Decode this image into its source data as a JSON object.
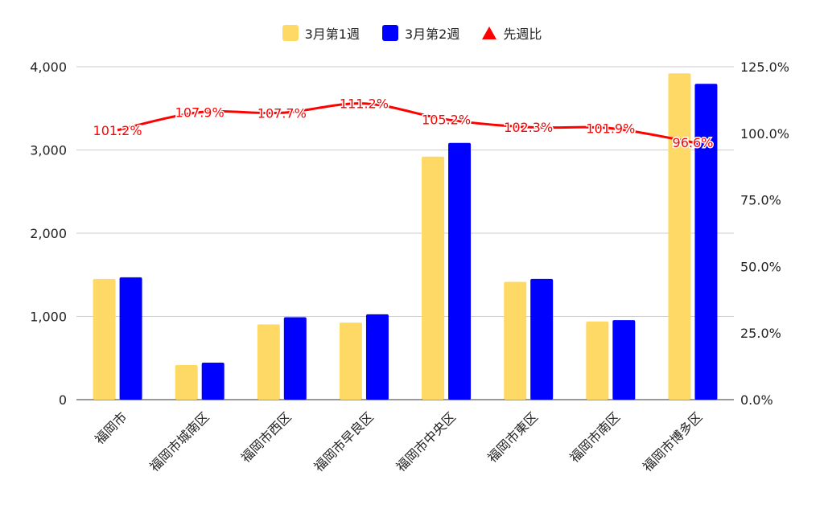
{
  "chart_data": {
    "type": "bar",
    "categories": [
      "福岡市",
      "福岡市城南区",
      "福岡市西区",
      "福岡市早良区",
      "福岡市中央区",
      "福岡市東区",
      "福岡市南区",
      "福岡市博多区"
    ],
    "series": [
      {
        "name": "3月第1週",
        "values": [
          1450,
          415,
          905,
          925,
          2920,
          1415,
          940,
          3920
        ],
        "color": "#ffd966",
        "axis": "left"
      },
      {
        "name": "3月第2週",
        "values": [
          1470,
          445,
          990,
          1025,
          3085,
          1450,
          955,
          3795
        ],
        "color": "#0000ff",
        "axis": "left"
      }
    ],
    "line_series": {
      "name": "先週比",
      "values": [
        101.2,
        107.9,
        107.7,
        111.2,
        105.2,
        102.3,
        101.9,
        96.6
      ],
      "labels": [
        "101.2%",
        "107.9%",
        "107.7%",
        "111.2%",
        "105.2%",
        "102.3%",
        "101.9%",
        "96.6%"
      ],
      "color": "#ff0000",
      "axis": "right"
    },
    "left_axis": {
      "ylim": [
        0,
        4000
      ],
      "ticks": [
        0,
        1000,
        2000,
        3000,
        4000
      ],
      "tick_labels": [
        "0",
        "1,000",
        "2,000",
        "3,000",
        "4,000"
      ]
    },
    "right_axis": {
      "ylim": [
        0,
        125
      ],
      "ticks": [
        0,
        25,
        50,
        75,
        100,
        125
      ],
      "tick_labels": [
        "0.0%",
        "25.0%",
        "50.0%",
        "75.0%",
        "100.0%",
        "125.0%"
      ]
    },
    "grid": true,
    "legend_position": "top-center"
  }
}
